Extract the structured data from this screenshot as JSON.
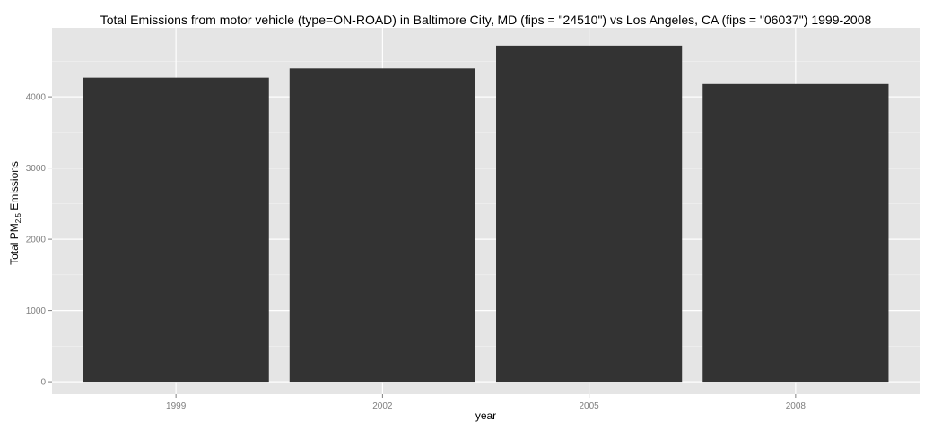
{
  "chart_data": {
    "type": "bar",
    "title": "Total Emissions from motor vehicle (type=ON-ROAD) in Baltimore City, MD (fips = \"24510\") vs Los Angeles, CA (fips = \"06037\")  1999-2008",
    "xlabel": "year",
    "ylabel_prefix": "Total PM",
    "ylabel_sub": "2.5",
    "ylabel_suffix": " Emissions",
    "categories": [
      "1999",
      "2002",
      "2005",
      "2008"
    ],
    "values": [
      4270,
      4400,
      4720,
      4180
    ],
    "ylim": [
      -175,
      4970
    ],
    "yticks": [
      0,
      1000,
      2000,
      3000,
      4000
    ],
    "grid": true,
    "colors": {
      "bar": "#333333",
      "panel": "#e5e5e5",
      "grid_major": "#ffffff",
      "grid_minor": "#f2f2f2",
      "tick_text": "#7f7f7f"
    }
  }
}
